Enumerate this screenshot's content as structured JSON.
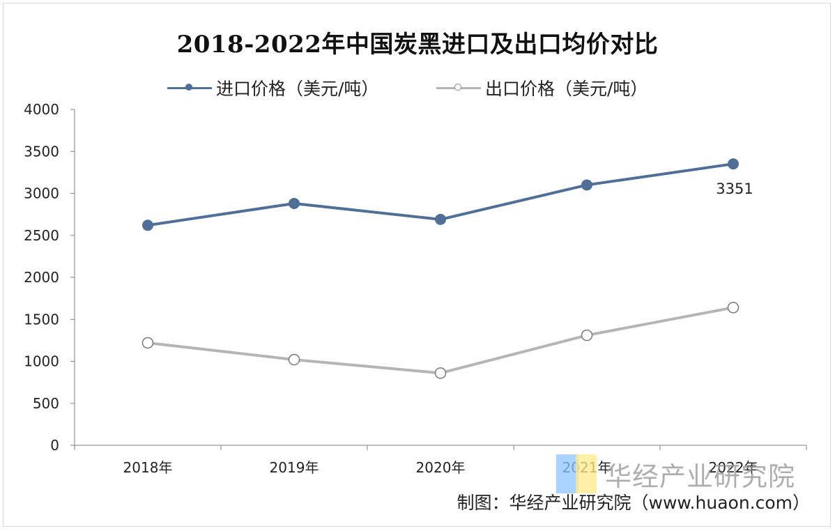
{
  "chart_data": {
    "type": "line",
    "title": "2018-2022年中国炭黑进口及出口均价对比",
    "categories": [
      "2018年",
      "2019年",
      "2020年",
      "2021年",
      "2022年"
    ],
    "series": [
      {
        "name": "进口价格（美元/吨）",
        "values": [
          2620,
          2880,
          2690,
          3100,
          3351
        ],
        "color": "#506f97",
        "marker": "filled"
      },
      {
        "name": "出口价格（美元/吨）",
        "values": [
          1220,
          1020,
          860,
          1310,
          1640
        ],
        "color": "#b5b5b5",
        "marker": "hollow"
      }
    ],
    "y_ticks": [
      "0",
      "500",
      "1000",
      "1500",
      "2000",
      "2500",
      "3000",
      "3500",
      "4000"
    ],
    "ylim": [
      0,
      4000
    ],
    "data_labels": [
      {
        "series": 0,
        "index": 4,
        "text": "3351"
      }
    ],
    "legend_position": "top",
    "grid": false
  },
  "watermark": {
    "text": "华经产业研究院"
  },
  "source": {
    "text": "制图：华经产业研究院（www.huaon.com）"
  }
}
